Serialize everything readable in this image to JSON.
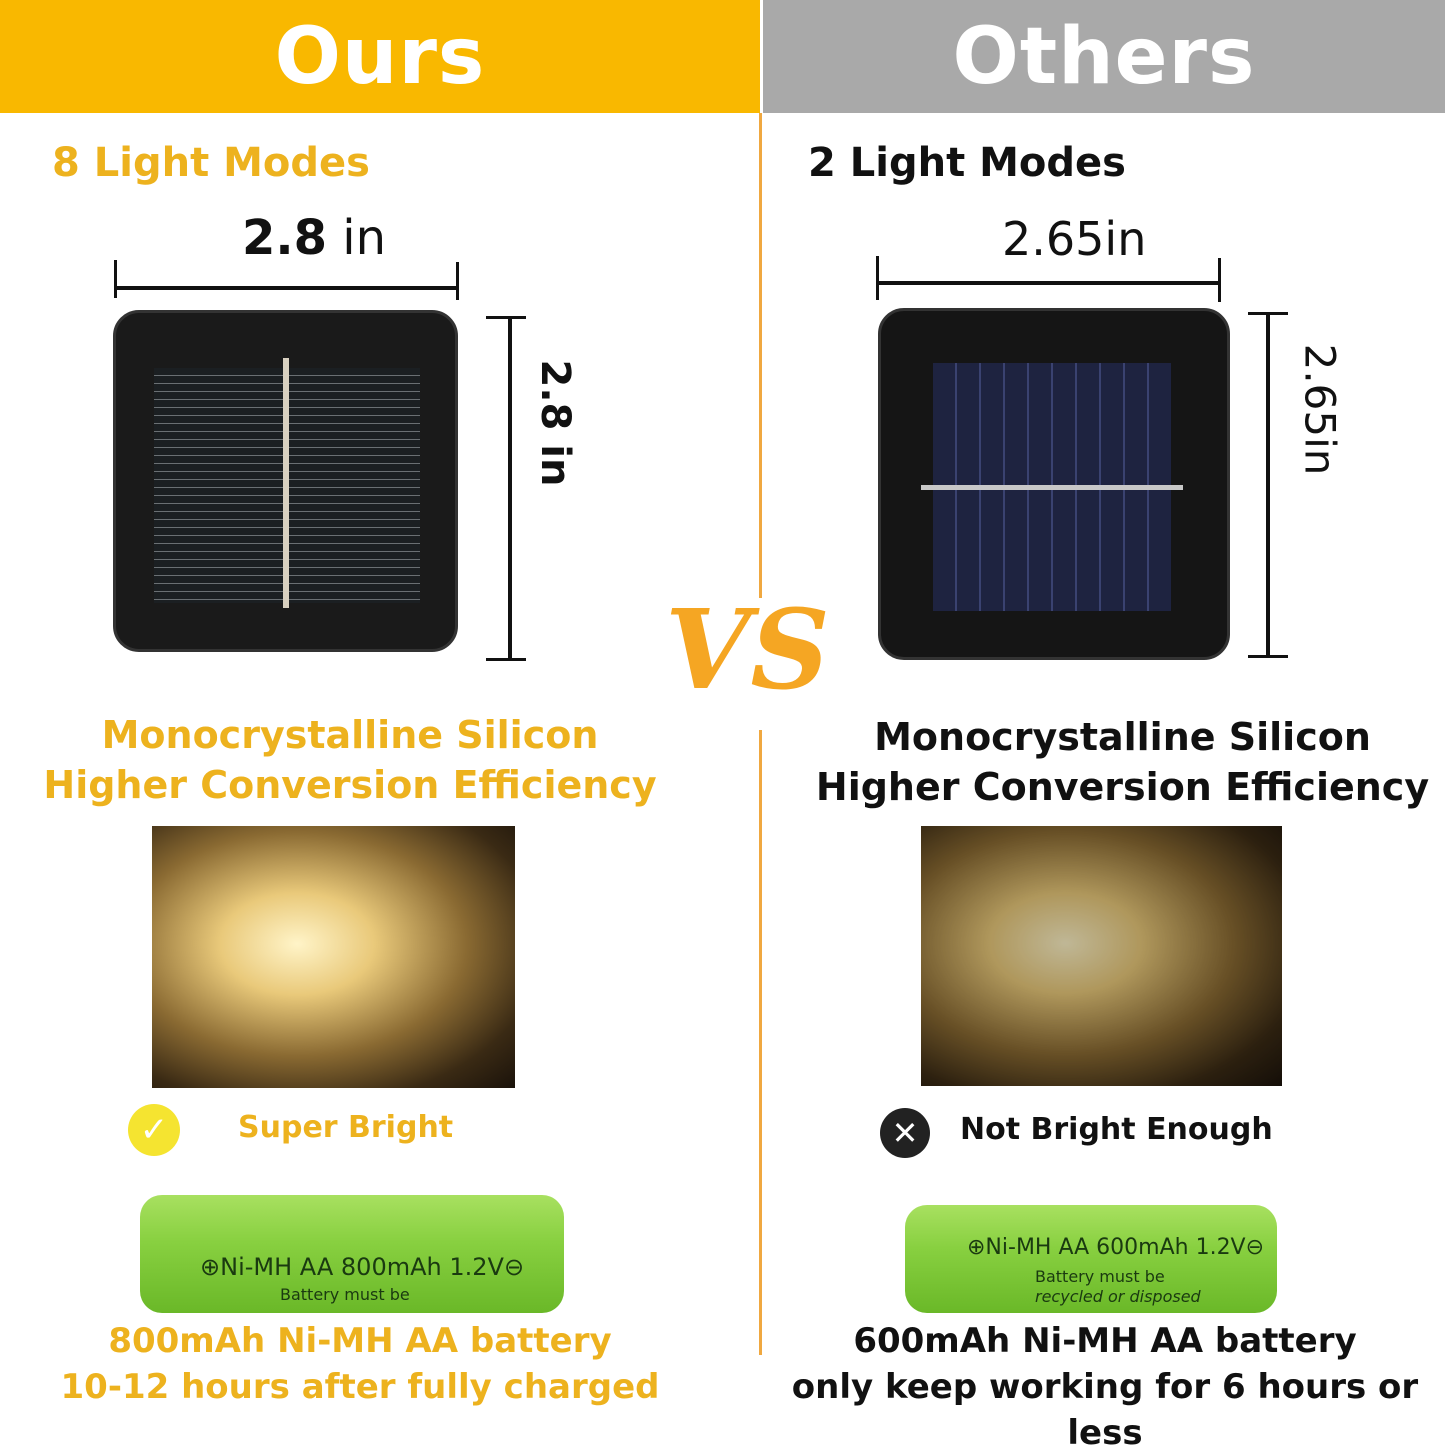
{
  "ours": {
    "header": "Ours",
    "modes": "8 Light Modes",
    "width": "2.8",
    "width_unit": "in",
    "height": "2.8 in",
    "silicon_line1": "Monocrystalline Silicon",
    "silicon_line2": "Higher Conversion Efficiency",
    "brightness": "Super Bright",
    "brightness_icon": "check-circle-icon",
    "battery_label": "⊕Ni-MH  AA  800mAh 1.2V⊖",
    "battery_small": "Battery must be",
    "battery_line1": "800mAh Ni-MH AA battery",
    "battery_line2": "10-12 hours after fully charged"
  },
  "others": {
    "header": "Others",
    "modes": "2 Light Modes",
    "width": "2.65in",
    "height": "2.65in",
    "silicon_line1": "Monocrystalline Silicon",
    "silicon_line2": "Higher Conversion Efficiency",
    "brightness": "Not Bright Enough",
    "brightness_icon": "x-circle-icon",
    "battery_label": "⊕Ni-MH  AA 600mAh 1.2V⊖",
    "battery_small": "Battery must be",
    "battery_small2": "recycled or disposed",
    "battery_line1": "600mAh Ni-MH AA battery",
    "battery_line2": "only keep working for 6 hours or less"
  },
  "vs": "VS",
  "colors": {
    "ours_header": "#F9B800",
    "others_header": "#A9A9A9",
    "accent_text": "#EDB21E",
    "vs": "#F5A623",
    "divider": "#F0A840"
  }
}
